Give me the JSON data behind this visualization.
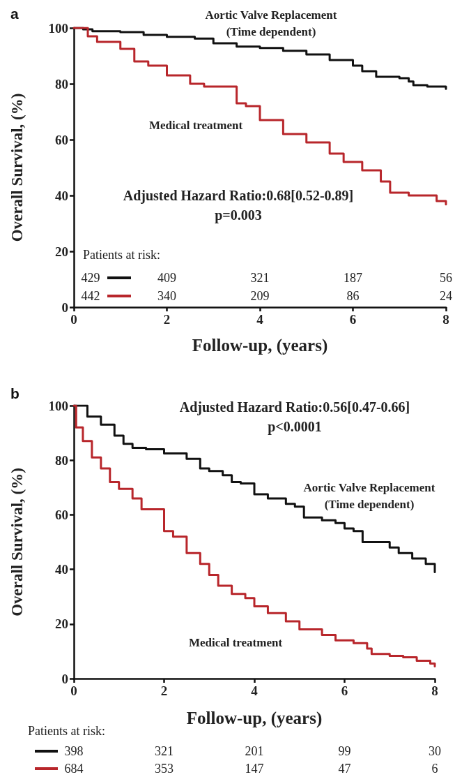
{
  "chart_data": [
    {
      "type": "step",
      "title": "a",
      "xlabel": "Follow-up, (years)",
      "ylabel": "Overall Survival, (%)",
      "xlim": [
        0,
        8
      ],
      "xticks": [
        0,
        2,
        4,
        6,
        8
      ],
      "ylim": [
        0,
        100
      ],
      "yticks": [
        0,
        20,
        40,
        60,
        80,
        100
      ],
      "grid": false,
      "line_style": "solid",
      "marker": "none",
      "series": [
        {
          "name": "Aortic Valve Replacement\n(Time dependent)",
          "color": "#111111",
          "x": [
            0,
            0.2,
            0.4,
            1,
            1.5,
            2,
            2.6,
            3,
            3.5,
            4,
            4.5,
            5,
            5.5,
            6,
            6.2,
            6.5,
            7,
            7.2,
            7.3,
            7.6,
            8
          ],
          "values": [
            100,
            99.5,
            98.8,
            98.5,
            97.5,
            96.8,
            96.2,
            94.5,
            93.3,
            92.8,
            91.8,
            90.5,
            88.5,
            86.5,
            84.5,
            82.5,
            82,
            80.8,
            79.5,
            79,
            78.2
          ]
        },
        {
          "name": "Medical treatment",
          "color": "#b8262b",
          "x": [
            0,
            0.3,
            0.5,
            1,
            1.3,
            1.6,
            2,
            2.5,
            2.8,
            3.5,
            3.7,
            4,
            4.5,
            5,
            5.5,
            5.8,
            6.2,
            6.6,
            6.8,
            7.2,
            7.8,
            8
          ],
          "values": [
            100,
            97,
            95,
            92.5,
            88,
            86.5,
            83,
            80,
            79,
            73,
            72,
            67,
            62,
            59,
            55,
            52,
            49,
            45,
            41,
            40,
            38,
            36.8
          ]
        }
      ],
      "annotations": [
        "Adjusted Hazard Ratio:0.68[0.52-0.89]\np=0.003",
        "Patients at risk:",
        "429",
        "409",
        "321",
        "187",
        "56",
        "442",
        "340",
        "209",
        "86",
        "24"
      ]
    },
    {
      "type": "step",
      "title": "b",
      "xlabel": "Follow-up, (years)",
      "ylabel": "Overall Survival, (%)",
      "xlim": [
        0,
        8
      ],
      "xticks": [
        0,
        2,
        4,
        6,
        8
      ],
      "ylim": [
        0,
        100
      ],
      "yticks": [
        0,
        20,
        40,
        60,
        80,
        100
      ],
      "grid": false,
      "line_style": "solid",
      "marker": "none",
      "series": [
        {
          "name": "Aortic Valve Replacement\n(Time dependent)",
          "color": "#111111",
          "x": [
            0,
            0.3,
            0.6,
            0.9,
            1.1,
            1.3,
            1.6,
            2,
            2.5,
            2.8,
            3,
            3.3,
            3.5,
            3.7,
            4,
            4.3,
            4.7,
            4.9,
            5.1,
            5.5,
            5.8,
            6,
            6.2,
            6.4,
            7,
            7.2,
            7.5,
            7.8,
            8
          ],
          "values": [
            100,
            96,
            93,
            89,
            86,
            84.5,
            84,
            82.5,
            80.5,
            77,
            76,
            74.5,
            72,
            71.5,
            67.5,
            66,
            64,
            63,
            59,
            58,
            57,
            55,
            54,
            50,
            48,
            46,
            44,
            42,
            39
          ]
        },
        {
          "name": "Medical treatment",
          "color": "#b8262b",
          "x": [
            0,
            0.05,
            0.2,
            0.4,
            0.6,
            0.8,
            1,
            1.3,
            1.5,
            2,
            2.2,
            2.5,
            2.8,
            3,
            3.2,
            3.5,
            3.8,
            4,
            4.3,
            4.7,
            5,
            5.5,
            5.8,
            6.2,
            6.5,
            6.6,
            7,
            7.3,
            7.6,
            7.9,
            8
          ],
          "values": [
            100,
            92,
            87,
            81,
            77,
            72,
            69.5,
            66,
            62,
            54,
            52,
            46,
            42,
            38,
            34,
            31,
            29.5,
            26.5,
            24,
            21,
            18,
            16,
            14,
            13,
            11,
            9,
            8.3,
            7.8,
            6.5,
            5.5,
            4.5
          ]
        }
      ],
      "annotations": [
        "Adjusted Hazard Ratio:0.56[0.47-0.66]\np<0.0001",
        "Patients at risk:",
        "398",
        "321",
        "201",
        "99",
        "30",
        "684",
        "353",
        "147",
        "47",
        "6"
      ]
    }
  ]
}
